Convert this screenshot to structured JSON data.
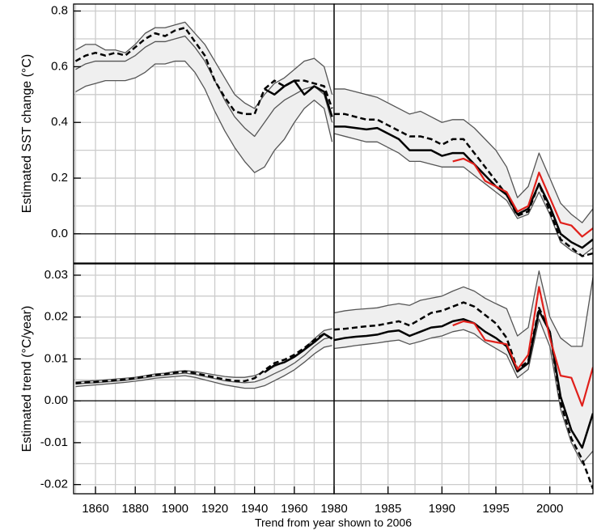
{
  "xlabel": "Trend from year shown to 2006",
  "chart_data": [
    {
      "type": "line",
      "ylabel": "Estimated SST change (°C)",
      "x": [
        1850,
        1855,
        1860,
        1865,
        1870,
        1875,
        1880,
        1885,
        1890,
        1895,
        1900,
        1905,
        1910,
        1915,
        1920,
        1925,
        1930,
        1935,
        1940,
        1945,
        1950,
        1955,
        1960,
        1965,
        1970,
        1975,
        1979
      ],
      "xlim": [
        1849,
        1980
      ],
      "ylim": [
        -0.105,
        0.825
      ],
      "yticks": [
        {
          "value": 0,
          "label": "0.0"
        },
        0.2,
        0.4,
        0.6,
        0.8
      ],
      "x_grid": [
        1850,
        1860,
        1870,
        1880,
        1890,
        1900,
        1910,
        1920,
        1930,
        1940,
        1950,
        1960,
        1970
      ],
      "y_grid": [
        0.1,
        0.2,
        0.3,
        0.4,
        0.5,
        0.6,
        0.7,
        0.8
      ],
      "zero_line": true,
      "band": [
        0,
        1
      ],
      "series": [
        {
          "color": "#555555",
          "style": "solid",
          "width": 1.3,
          "values": [
            0.66,
            0.68,
            0.68,
            0.66,
            0.66,
            0.65,
            0.68,
            0.72,
            0.74,
            0.74,
            0.75,
            0.76,
            0.72,
            0.68,
            0.62,
            0.56,
            0.5,
            0.47,
            0.45,
            0.5,
            0.54,
            0.56,
            0.59,
            0.62,
            0.63,
            0.6,
            0.5
          ]
        },
        {
          "color": "#555555",
          "style": "solid",
          "width": 1.3,
          "values": [
            0.51,
            0.53,
            0.54,
            0.55,
            0.55,
            0.55,
            0.56,
            0.58,
            0.61,
            0.61,
            0.62,
            0.62,
            0.58,
            0.52,
            0.44,
            0.37,
            0.31,
            0.26,
            0.22,
            0.24,
            0.3,
            0.34,
            0.4,
            0.45,
            0.48,
            0.45,
            0.33
          ]
        },
        {
          "color": "#555555",
          "style": "solid",
          "width": 1.3,
          "values": [
            0.59,
            0.61,
            0.62,
            0.62,
            0.62,
            0.62,
            0.64,
            0.67,
            0.69,
            0.69,
            0.7,
            0.71,
            0.67,
            0.62,
            0.55,
            0.48,
            0.42,
            0.38,
            0.35,
            0.4,
            0.45,
            0.48,
            0.5,
            0.52,
            0.53,
            0.5,
            0.4
          ]
        },
        {
          "color": "#000000",
          "style": "solid",
          "width": 2.5,
          "values": [
            null,
            null,
            null,
            null,
            null,
            null,
            null,
            null,
            null,
            null,
            null,
            null,
            null,
            null,
            null,
            null,
            null,
            null,
            null,
            0.52,
            0.5,
            0.53,
            0.55,
            0.5,
            0.53,
            0.51,
            0.42
          ]
        },
        {
          "color": "#000000",
          "style": "dashed",
          "width": 2.5,
          "values": [
            0.62,
            0.64,
            0.65,
            0.64,
            0.65,
            0.64,
            0.67,
            0.7,
            0.72,
            0.71,
            0.73,
            0.74,
            0.69,
            0.64,
            0.55,
            0.49,
            0.44,
            0.43,
            0.43,
            0.52,
            0.55,
            0.53,
            0.55,
            0.55,
            0.54,
            0.53,
            0.45
          ]
        }
      ]
    },
    {
      "type": "line",
      "x": [
        1980,
        1981,
        1982,
        1983,
        1984,
        1985,
        1986,
        1987,
        1988,
        1989,
        1990,
        1991,
        1992,
        1993,
        1994,
        1995,
        1996,
        1997,
        1998,
        1999,
        2000,
        2001,
        2002,
        2003,
        2004
      ],
      "xlim": [
        1980,
        2004
      ],
      "ylim": [
        -0.105,
        0.825
      ],
      "x_grid": [
        1982.5,
        1985,
        1987.5,
        1990,
        1992.5,
        1995,
        1997.5,
        2000,
        2002.5
      ],
      "y_grid": [
        0.1,
        0.2,
        0.3,
        0.4,
        0.5,
        0.6,
        0.7,
        0.8
      ],
      "zero_line": true,
      "band": [
        0,
        1
      ],
      "series": [
        {
          "color": "#555555",
          "style": "solid",
          "width": 1.3,
          "values": [
            0.52,
            0.52,
            0.51,
            0.5,
            0.49,
            0.47,
            0.45,
            0.43,
            0.44,
            0.42,
            0.4,
            0.41,
            0.41,
            0.38,
            0.34,
            0.3,
            0.24,
            0.13,
            0.17,
            0.29,
            0.2,
            0.11,
            0.07,
            0.04,
            0.09
          ]
        },
        {
          "color": "#555555",
          "style": "solid",
          "width": 1.3,
          "values": [
            0.36,
            0.35,
            0.34,
            0.33,
            0.33,
            0.31,
            0.29,
            0.26,
            0.26,
            0.25,
            0.24,
            0.24,
            0.24,
            0.21,
            0.18,
            0.15,
            0.12,
            0.055,
            0.07,
            0.15,
            0.07,
            -0.03,
            -0.06,
            -0.08,
            -0.05
          ]
        },
        {
          "color": "#000000",
          "style": "solid",
          "width": 2.5,
          "values": [
            0.385,
            0.385,
            0.38,
            0.375,
            0.38,
            0.36,
            0.34,
            0.3,
            0.3,
            0.3,
            0.28,
            0.29,
            0.29,
            0.25,
            0.21,
            0.17,
            0.14,
            0.07,
            0.09,
            0.18,
            0.1,
            0.0,
            -0.03,
            -0.05,
            -0.02
          ]
        },
        {
          "color": "#000000",
          "style": "dashed",
          "width": 2.5,
          "values": [
            0.43,
            0.43,
            0.42,
            0.41,
            0.41,
            0.39,
            0.37,
            0.35,
            0.35,
            0.34,
            0.32,
            0.34,
            0.34,
            0.29,
            0.24,
            0.19,
            0.14,
            0.065,
            0.08,
            0.18,
            0.08,
            -0.02,
            -0.05,
            -0.08,
            -0.07
          ]
        },
        {
          "color": "#e0201b",
          "style": "solid",
          "width": 2.2,
          "values": [
            null,
            null,
            null,
            null,
            null,
            null,
            null,
            null,
            null,
            null,
            null,
            0.26,
            0.27,
            0.25,
            0.19,
            0.17,
            0.15,
            0.08,
            0.1,
            0.22,
            0.13,
            0.04,
            0.03,
            -0.01,
            0.02
          ]
        }
      ]
    },
    {
      "type": "line",
      "ylabel": "Estimated trend (°C/year)",
      "x": [
        1850,
        1855,
        1860,
        1865,
        1870,
        1875,
        1880,
        1885,
        1890,
        1895,
        1900,
        1905,
        1910,
        1915,
        1920,
        1925,
        1930,
        1935,
        1940,
        1945,
        1950,
        1955,
        1960,
        1965,
        1970,
        1975,
        1979
      ],
      "xlim": [
        1849,
        1980
      ],
      "ylim": [
        -0.0222,
        0.0327
      ],
      "yticks": [
        -0.02,
        -0.01,
        {
          "value": 0,
          "label": "0.00"
        },
        0.01,
        0.02,
        0.03
      ],
      "xticks": [
        1860,
        1880,
        1900,
        1920,
        1940,
        1960,
        1980
      ],
      "x_grid": [
        1850,
        1860,
        1870,
        1880,
        1890,
        1900,
        1910,
        1920,
        1930,
        1940,
        1950,
        1960,
        1970
      ],
      "y_grid": [
        -0.02,
        -0.015,
        -0.01,
        -0.005,
        0.005,
        0.01,
        0.015,
        0.02,
        0.025,
        0.03
      ],
      "zero_line": true,
      "band": [
        0,
        1
      ],
      "series": [
        {
          "color": "#555555",
          "style": "solid",
          "width": 1.3,
          "values": [
            0.0045,
            0.0047,
            0.0048,
            0.005,
            0.0052,
            0.0054,
            0.0056,
            0.006,
            0.0064,
            0.0066,
            0.007,
            0.0072,
            0.007,
            0.0066,
            0.0062,
            0.0058,
            0.0056,
            0.0056,
            0.006,
            0.007,
            0.0082,
            0.0092,
            0.0106,
            0.0124,
            0.0148,
            0.0168,
            0.0172
          ]
        },
        {
          "color": "#555555",
          "style": "solid",
          "width": 1.3,
          "values": [
            0.0034,
            0.0036,
            0.0038,
            0.004,
            0.0042,
            0.0044,
            0.0047,
            0.005,
            0.0054,
            0.0056,
            0.0058,
            0.006,
            0.0056,
            0.005,
            0.0044,
            0.0038,
            0.0034,
            0.003,
            0.003,
            0.0036,
            0.0048,
            0.006,
            0.0074,
            0.0092,
            0.0112,
            0.0128,
            0.0132
          ]
        },
        {
          "color": "#555555",
          "style": "solid",
          "width": 1.3,
          "values": [
            0.004,
            0.0042,
            0.0043,
            0.0045,
            0.0047,
            0.0049,
            0.0052,
            0.0055,
            0.0059,
            0.0061,
            0.0064,
            0.0066,
            0.0063,
            0.0058,
            0.0053,
            0.0048,
            0.0045,
            0.0043,
            0.0045,
            0.0053,
            0.0065,
            0.0076,
            0.009,
            0.0108,
            0.013,
            0.0148,
            0.0152
          ]
        },
        {
          "color": "#000000",
          "style": "solid",
          "width": 2.5,
          "values": [
            null,
            null,
            null,
            null,
            null,
            null,
            null,
            null,
            null,
            null,
            null,
            null,
            null,
            null,
            null,
            null,
            null,
            null,
            null,
            0.0068,
            0.0085,
            0.0092,
            0.0105,
            0.0122,
            0.014,
            0.016,
            0.0148
          ]
        },
        {
          "color": "#000000",
          "style": "dashed",
          "width": 2.5,
          "values": [
            0.0042,
            0.0044,
            0.0045,
            0.0047,
            0.0049,
            0.0051,
            0.0054,
            0.0058,
            0.0062,
            0.0064,
            0.0067,
            0.007,
            0.0066,
            0.0061,
            0.0056,
            0.0051,
            0.0048,
            0.0047,
            0.0054,
            0.0073,
            0.009,
            0.0098,
            0.011,
            0.0126,
            0.0145,
            0.016,
            0.0148
          ]
        }
      ]
    },
    {
      "type": "line",
      "x": [
        1980,
        1981,
        1982,
        1983,
        1984,
        1985,
        1986,
        1987,
        1988,
        1989,
        1990,
        1991,
        1992,
        1993,
        1994,
        1995,
        1996,
        1997,
        1998,
        1999,
        2000,
        2001,
        2002,
        2003,
        2004
      ],
      "xlim": [
        1980,
        2004
      ],
      "ylim": [
        -0.0222,
        0.0327
      ],
      "xticks": [
        1985,
        1990,
        1995,
        2000
      ],
      "x_grid": [
        1982.5,
        1985,
        1987.5,
        1990,
        1992.5,
        1995,
        1997.5,
        2000,
        2002.5
      ],
      "y_grid": [
        -0.02,
        -0.015,
        -0.01,
        -0.005,
        0.005,
        0.01,
        0.015,
        0.02,
        0.025,
        0.03
      ],
      "zero_line": true,
      "band": [
        0,
        1
      ],
      "series": [
        {
          "color": "#555555",
          "style": "solid",
          "width": 1.3,
          "values": [
            0.021,
            0.0215,
            0.0218,
            0.022,
            0.0222,
            0.0228,
            0.0232,
            0.0228,
            0.024,
            0.0245,
            0.025,
            0.0262,
            0.0272,
            0.0262,
            0.0245,
            0.0232,
            0.022,
            0.0155,
            0.0175,
            0.031,
            0.02,
            0.015,
            0.013,
            0.013,
            0.0295
          ]
        },
        {
          "color": "#555555",
          "style": "solid",
          "width": 1.3,
          "values": [
            0.0125,
            0.0128,
            0.0132,
            0.0135,
            0.0138,
            0.0142,
            0.0145,
            0.0135,
            0.0142,
            0.015,
            0.0155,
            0.0165,
            0.017,
            0.016,
            0.014,
            0.0125,
            0.011,
            0.0055,
            0.0075,
            0.0195,
            0.013,
            -0.002,
            -0.01,
            -0.015,
            -0.012
          ]
        },
        {
          "color": "#000000",
          "style": "solid",
          "width": 2.5,
          "values": [
            0.0145,
            0.015,
            0.0153,
            0.0155,
            0.0158,
            0.0165,
            0.0168,
            0.0155,
            0.0165,
            0.0175,
            0.0178,
            0.019,
            0.0195,
            0.0185,
            0.0165,
            0.015,
            0.013,
            0.007,
            0.009,
            0.0215,
            0.0165,
            0.001,
            -0.007,
            -0.0112,
            -0.003
          ]
        },
        {
          "color": "#000000",
          "style": "dashed",
          "width": 2.5,
          "values": [
            0.017,
            0.0172,
            0.0175,
            0.0178,
            0.018,
            0.0185,
            0.019,
            0.018,
            0.0195,
            0.021,
            0.0215,
            0.0225,
            0.0235,
            0.0225,
            0.0205,
            0.0185,
            0.015,
            0.0075,
            0.0095,
            0.0222,
            0.0165,
            -0.0005,
            -0.009,
            -0.014,
            -0.021
          ]
        },
        {
          "color": "#e0201b",
          "style": "solid",
          "width": 2.2,
          "values": [
            null,
            null,
            null,
            null,
            null,
            null,
            null,
            null,
            null,
            null,
            null,
            0.018,
            0.019,
            0.0185,
            0.0145,
            0.014,
            0.0135,
            0.0075,
            0.011,
            0.0272,
            0.015,
            0.006,
            0.0055,
            -0.0012,
            0.008
          ]
        }
      ]
    }
  ]
}
